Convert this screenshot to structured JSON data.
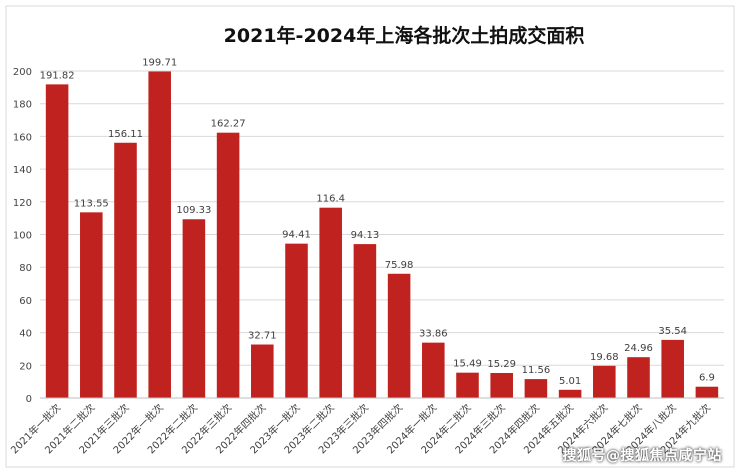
{
  "watermark": "搜狐号@搜狐焦点咸宁站",
  "chart_data": {
    "type": "bar",
    "title": "2021年-2024年上海各批次土拍成交面积",
    "xlabel": "",
    "ylabel": "",
    "ylim": [
      0,
      200
    ],
    "yticks": [
      "0",
      "20",
      "40",
      "60",
      "80",
      "100",
      "120",
      "140",
      "160",
      "180",
      "200"
    ],
    "grid": true,
    "bar_color": "#C0231F",
    "categories": [
      "2021年一批次",
      "2021年二批次",
      "2021年三批次",
      "2022年一批次",
      "2022年二批次",
      "2022年三批次",
      "2022年四批次",
      "2023年一批次",
      "2023年二批次",
      "2023年三批次",
      "2023年四批次",
      "2024年一批次",
      "2024年二批次",
      "2024年三批次",
      "2024年四批次",
      "2024年五批次",
      "2024年六批次",
      "2024年七批次",
      "2024年八批次",
      "2024年九批次"
    ],
    "values": [
      191.82,
      113.55,
      156.11,
      199.71,
      109.33,
      162.27,
      32.71,
      94.41,
      116.4,
      94.13,
      75.98,
      33.86,
      15.49,
      15.29,
      11.56,
      5.01,
      19.68,
      24.96,
      35.54,
      6.9
    ],
    "value_labels": [
      "191.82",
      "113.55",
      "156.11",
      "199.71",
      "109.33",
      "162.27",
      "32.71",
      "94.41",
      "116.4",
      "94.13",
      "75.98",
      "33.86",
      "15.49",
      "15.29",
      "11.56",
      "5.01",
      "19.68",
      "24.96",
      "35.54",
      "6.9"
    ]
  }
}
